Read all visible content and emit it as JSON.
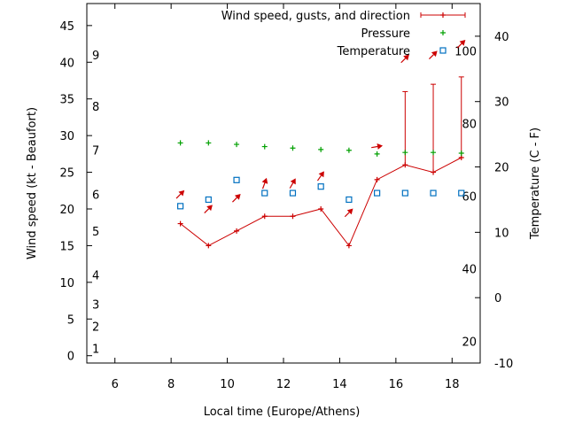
{
  "chart_data": {
    "type": "line",
    "xlabel": "Local time (Europe/Athens)",
    "ylabel_left": "Wind speed (kt - Beaufort)",
    "ylabel_right": "Temperature (C - F)",
    "xlim": [
      5,
      19
    ],
    "ylim_left": [
      -1,
      48
    ],
    "ylim_right": [
      -10,
      45
    ],
    "x_ticks": [
      6,
      8,
      10,
      12,
      14,
      16,
      18
    ],
    "y_ticks_left": [
      0,
      5,
      10,
      15,
      20,
      25,
      30,
      35,
      40,
      45
    ],
    "y_ticks_right": [
      -10,
      0,
      10,
      20,
      30,
      40
    ],
    "fahrenheit_ticks": [
      20,
      40,
      60,
      80,
      100
    ],
    "beaufort_scale": [
      {
        "label": "1",
        "kt": 1
      },
      {
        "label": "2",
        "kt": 4
      },
      {
        "label": "3",
        "kt": 7
      },
      {
        "label": "4",
        "kt": 11
      },
      {
        "label": "5",
        "kt": 17
      },
      {
        "label": "6",
        "kt": 22
      },
      {
        "label": "7",
        "kt": 28
      },
      {
        "label": "8",
        "kt": 34
      },
      {
        "label": "9",
        "kt": 41
      }
    ],
    "legend": {
      "position": "top-right",
      "entries": [
        "Wind speed, gusts, and direction",
        "Pressure",
        "Temperature"
      ]
    },
    "grid": false,
    "series": [
      {
        "name": "Wind speed, gusts, and direction",
        "color": "#cc0000",
        "x": [
          8.33,
          9.33,
          10.33,
          11.33,
          12.33,
          13.33,
          14.33,
          15.33,
          16.33,
          17.33,
          18.33
        ],
        "speed": [
          18,
          15,
          17,
          19,
          19,
          20,
          15,
          24,
          26,
          25,
          27
        ],
        "gust": [
          null,
          null,
          null,
          null,
          null,
          null,
          null,
          null,
          36,
          37,
          38
        ],
        "arrow_y": [
          22,
          20,
          21.5,
          23.5,
          23.5,
          24.5,
          19.5,
          28.5,
          40.5,
          41,
          42.5
        ],
        "arrow_direction_deg": [
          225,
          225,
          225,
          200,
          210,
          215,
          225,
          260,
          225,
          225,
          225
        ]
      },
      {
        "name": "Pressure",
        "color": "#00a000",
        "x": [
          8.33,
          9.33,
          10.33,
          11.33,
          12.33,
          13.33,
          14.33,
          15.33,
          16.33,
          17.33,
          18.33
        ],
        "values": [
          29,
          29,
          28.8,
          28.5,
          28.3,
          28.1,
          28,
          27.5,
          27.7,
          27.7,
          27.6
        ]
      },
      {
        "name": "Temperature",
        "color": "#0070c0",
        "x": [
          8.33,
          9.33,
          10.33,
          11.33,
          12.33,
          13.33,
          14.33,
          15.33,
          16.33,
          17.33,
          18.33
        ],
        "values": [
          14,
          15,
          18,
          16,
          16,
          17,
          15,
          16,
          16,
          16,
          16
        ]
      }
    ]
  }
}
